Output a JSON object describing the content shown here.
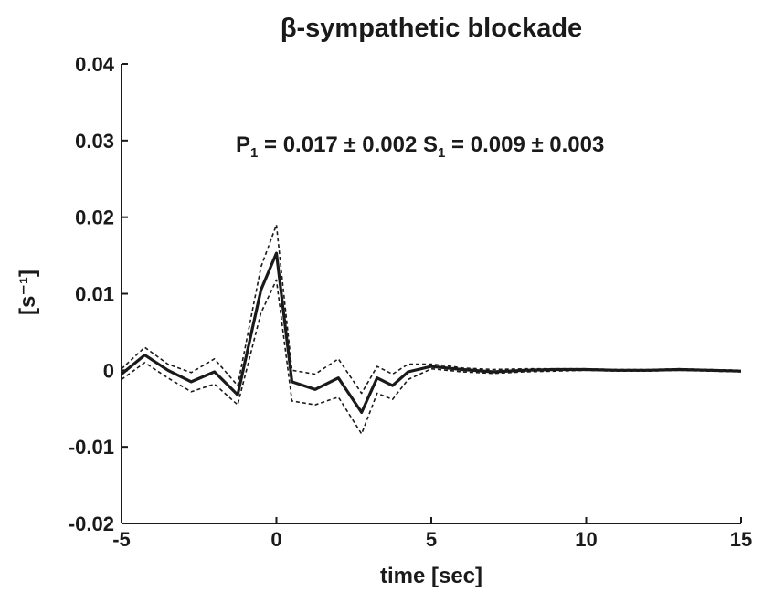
{
  "chart_data": {
    "type": "line",
    "title": "β-sympathetic blockade",
    "xlabel": "time [sec]",
    "ylabel": "[s⁻¹]",
    "xlim": [
      -5,
      15
    ],
    "ylim": [
      -0.02,
      0.04
    ],
    "x_ticks": [
      {
        "value": -5,
        "label": "-5"
      },
      {
        "value": 0,
        "label": "0"
      },
      {
        "value": 5,
        "label": "5"
      },
      {
        "value": 10,
        "label": "10"
      },
      {
        "value": 15,
        "label": "15"
      }
    ],
    "y_ticks": [
      {
        "value": -0.02,
        "label": "-0.02"
      },
      {
        "value": -0.01,
        "label": "-0.01"
      },
      {
        "value": 0,
        "label": "0"
      },
      {
        "value": 0.01,
        "label": "0.01"
      },
      {
        "value": 0.02,
        "label": "0.02"
      },
      {
        "value": 0.03,
        "label": "0.03"
      },
      {
        "value": 0.04,
        "label": "0.04"
      }
    ],
    "annotation": {
      "p_symbol": "P",
      "p_sub": "1",
      "p_text": " = 0.017 ± 0.002  ",
      "s_symbol": "S",
      "s_sub": "1",
      "s_text": " = 0.009 ± 0.003"
    },
    "grid": false,
    "x": [
      -5,
      -4.25,
      -3.5,
      -2.75,
      -2.0,
      -1.25,
      -0.5,
      0.0,
      0.5,
      1.25,
      2.0,
      2.75,
      3.25,
      3.75,
      4.25,
      5.0,
      5.5,
      6.0,
      7.0,
      8.0,
      9.0,
      10.0,
      11.0,
      12.0,
      13.0,
      14.0,
      15.0
    ],
    "series": [
      {
        "style": "solid",
        "values": [
          -0.0005,
          0.002,
          0.0,
          -0.0015,
          -0.0002,
          -0.0032,
          0.0105,
          0.0153,
          -0.0015,
          -0.0025,
          -0.001,
          -0.0055,
          -0.001,
          -0.002,
          -0.0002,
          0.0005,
          0.0003,
          0.0001,
          -0.0002,
          0.0,
          0.0001,
          0.0001,
          0.0,
          0.0,
          0.0001,
          0.0,
          -0.0001
        ]
      },
      {
        "style": "dashed",
        "values": [
          0.0002,
          0.003,
          0.0008,
          -0.0003,
          0.0015,
          -0.002,
          0.0135,
          0.019,
          0.0,
          -0.0005,
          0.0015,
          -0.003,
          0.0005,
          -0.0005,
          0.0008,
          0.0008,
          0.0006,
          0.0003,
          0.0001,
          0.0002,
          0.0002,
          0.0002,
          0.0001,
          0.0001,
          0.0002,
          0.0001,
          0.0
        ]
      },
      {
        "style": "dashed",
        "values": [
          -0.0012,
          0.001,
          -0.001,
          -0.0028,
          -0.0018,
          -0.0045,
          0.0075,
          0.0118,
          -0.004,
          -0.0045,
          -0.0035,
          -0.0083,
          -0.003,
          -0.0038,
          -0.0012,
          0.0002,
          0.0,
          -0.0002,
          -0.0004,
          -0.0002,
          -0.0001,
          0.0,
          -0.0001,
          -0.0001,
          0.0,
          -0.0001,
          -0.0002
        ]
      }
    ],
    "colors": {
      "line": "#1a1a1a",
      "background": "#ffffff"
    }
  }
}
